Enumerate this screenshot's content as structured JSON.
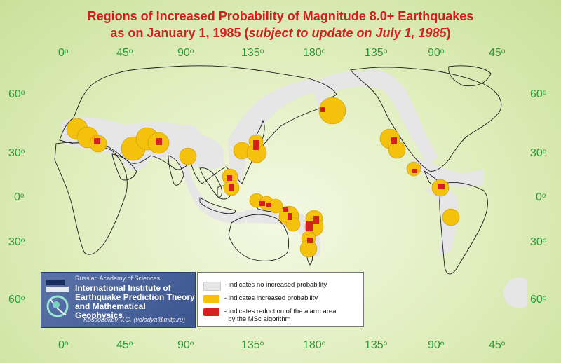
{
  "title": {
    "line1": "Regions of Increased Probability of Magnitude 8.0+ Earthquakes",
    "line2_prefix": "as on January 1, 1985 (",
    "line2_italic": "subject to update on July 1, 1985",
    "line2_suffix": ")"
  },
  "longitude_ticks": [
    "0",
    "45",
    "90",
    "135",
    "180",
    "135",
    "90",
    "45"
  ],
  "latitude_ticks": [
    "60",
    "30",
    "0",
    "30",
    "60"
  ],
  "degree_symbol": "o",
  "institute": {
    "academy": "Russian Academy of Sciences",
    "name_line1": "International Institute of",
    "name_line2": "Earthquake Prediction Theory",
    "name_line3": "and Mathematical Geophysics",
    "author": "Kossobokov V.G. (volodya@mitp.ru)"
  },
  "legend": {
    "items": [
      {
        "label": "- indicates no increased probability",
        "color": "#e6e6e6"
      },
      {
        "label": "- indicates increased probability",
        "color": "#f4c20d"
      },
      {
        "label": "- indicates reduction of the alarm area",
        "label2": "by the MSc algorithm",
        "color": "#d42020"
      }
    ]
  },
  "colors": {
    "title": "#d02020",
    "ticks": "#2e9a3a",
    "no_increase": "#e6e6e6",
    "increased": "#f4c20d",
    "reduced": "#d42020",
    "land_outline": "#1a1a1a"
  }
}
